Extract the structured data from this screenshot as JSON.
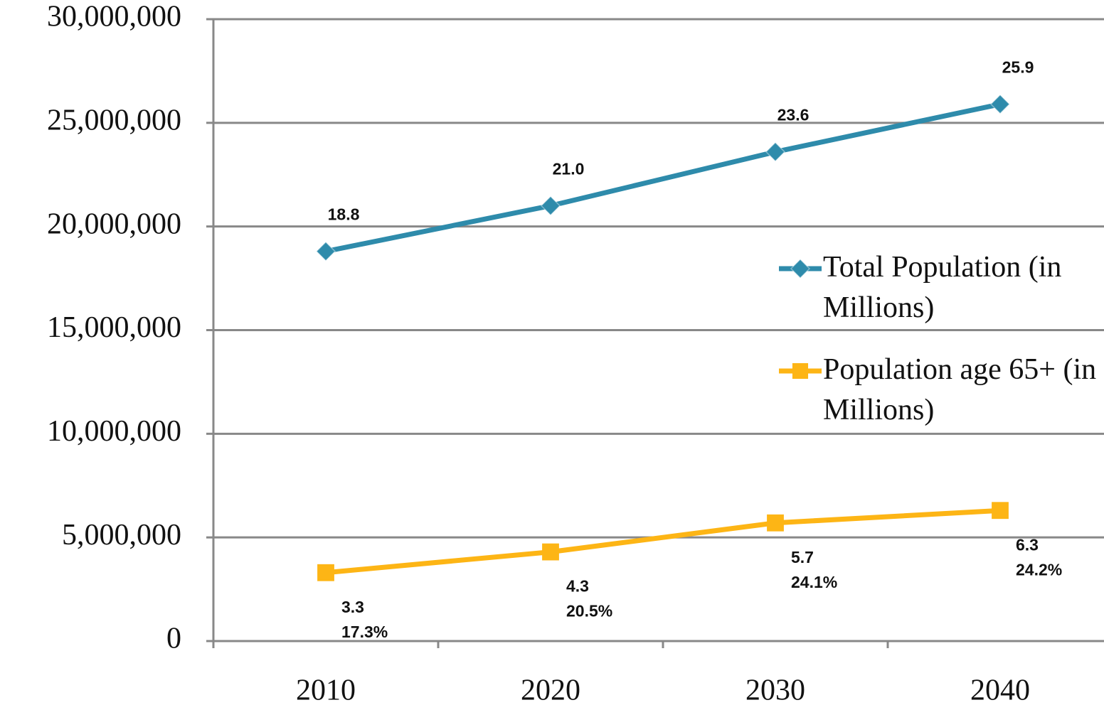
{
  "chart_data": {
    "type": "line",
    "categories": [
      "2010",
      "2020",
      "2030",
      "2040"
    ],
    "series": [
      {
        "name": "Total Population (in Millions)",
        "color": "#2e8bab",
        "marker": "diamond",
        "values": [
          18800000,
          21000000,
          23600000,
          25900000
        ],
        "value_labels": [
          "18.8",
          "21.0",
          "23.6",
          "25.9"
        ]
      },
      {
        "name": "Population age 65+ (in Millions)",
        "color": "#fdb515",
        "marker": "square",
        "values": [
          3300000,
          4300000,
          5700000,
          6300000
        ],
        "value_labels": [
          "3.3",
          "4.3",
          "5.7",
          "6.3"
        ],
        "share_labels": [
          "17.3%",
          "20.5%",
          "24.1%",
          "24.2%"
        ]
      }
    ],
    "ylim": [
      0,
      30000000
    ],
    "yticks": [
      0,
      {
        "value": 5000000,
        "label": "5,000,000"
      },
      {
        "value": 10000000,
        "label": "10,000,000"
      },
      {
        "value": 15000000,
        "label": "15,000,000"
      },
      {
        "value": 20000000,
        "label": "20,000,000"
      },
      {
        "value": 25000000,
        "label": "25,000,000"
      },
      {
        "value": 30000000,
        "label": "30,000,000"
      }
    ],
    "grid": true,
    "legend": "right"
  }
}
